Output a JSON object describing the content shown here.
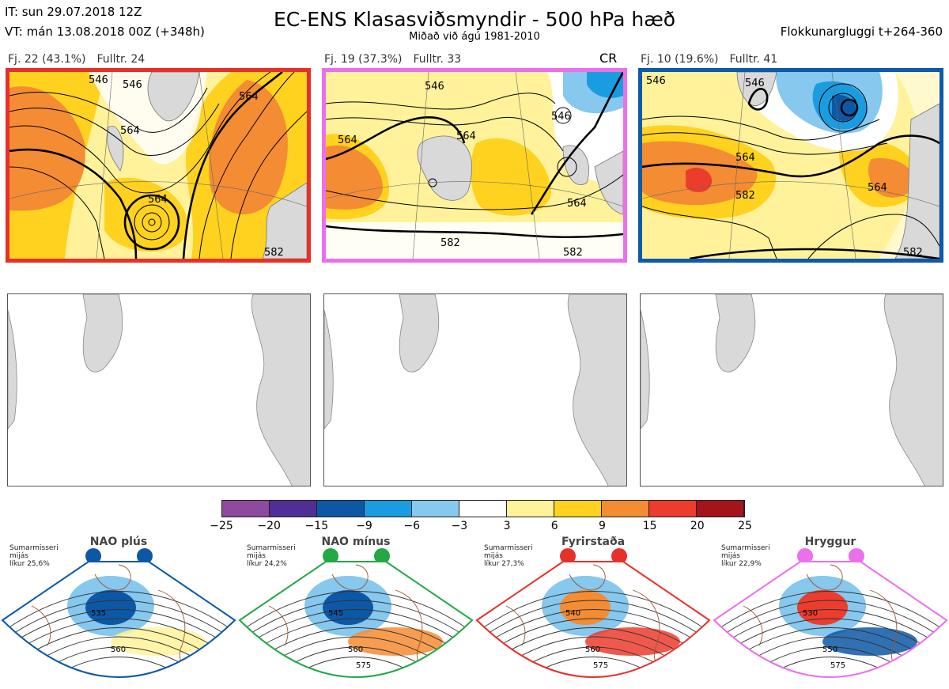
{
  "header": {
    "init_time": "IT: sun 29.07.2018 12Z",
    "valid_time": "VT: mán 13.08.2018 00Z  (+348h)",
    "title": "EC-ENS Klasasviðsmyndir - 500 hPa hæð",
    "subtitle": "Miðað við ágú 1981-2010",
    "window": "Flokkunargluggi t+264-360"
  },
  "clusters": [
    {
      "count": "Fj. 22 (43.1%)",
      "rep_member": "Fulltr. 24",
      "border_color": "#e8302a",
      "tag": "",
      "contour_labels": [
        "546",
        "546",
        "564",
        "564",
        "564",
        "582"
      ]
    },
    {
      "count": "Fj. 19 (37.3%)",
      "rep_member": "Fulltr. 33",
      "border_color": "#ec6fec",
      "tag": "CR",
      "contour_labels": [
        "546",
        "564",
        "564",
        "546",
        "564",
        "582",
        "582"
      ]
    },
    {
      "count": "Fj. 10 (19.6%)",
      "rep_member": "Fulltr. 41",
      "border_color": "#0d5aa8",
      "tag": "",
      "contour_labels": [
        "546",
        "546",
        "564",
        "582",
        "564",
        "582"
      ]
    }
  ],
  "colorbar": {
    "ticks": [
      "−25",
      "−20",
      "−15",
      "−9",
      "−6",
      "−3",
      "3",
      "6",
      "9",
      "15",
      "20",
      "25"
    ],
    "colors": [
      "#8d4a9f",
      "#4f2f96",
      "#0d58a6",
      "#1a9de0",
      "#86c8ee",
      "#ffffff",
      "#fff29a",
      "#ffd21f",
      "#f48c33",
      "#ec3c2e",
      "#a3141b"
    ]
  },
  "regimes": [
    {
      "name": "NAO plús",
      "season": [
        "Sumarmisseri",
        "mijás",
        "líkur 25,6%"
      ],
      "color": "#0d58a6",
      "contour_labels": [
        "535",
        "560"
      ]
    },
    {
      "name": "NAO mínus",
      "season": [
        "Sumarmisseri",
        "mijás",
        "líkur 24,2%"
      ],
      "color": "#22a845",
      "contour_labels": [
        "545",
        "560",
        "575"
      ]
    },
    {
      "name": "Fyrirstaða",
      "season": [
        "Sumarmisseri",
        "mijás",
        "líkur 27,3%"
      ],
      "color": "#e8302a",
      "contour_labels": [
        "540",
        "560",
        "575"
      ]
    },
    {
      "name": "Hryggur",
      "season": [
        "Sumarmisseri",
        "mijás",
        "líkur 22,9%"
      ],
      "color": "#ec6fec",
      "contour_labels": [
        "530",
        "550",
        "575"
      ]
    }
  ]
}
